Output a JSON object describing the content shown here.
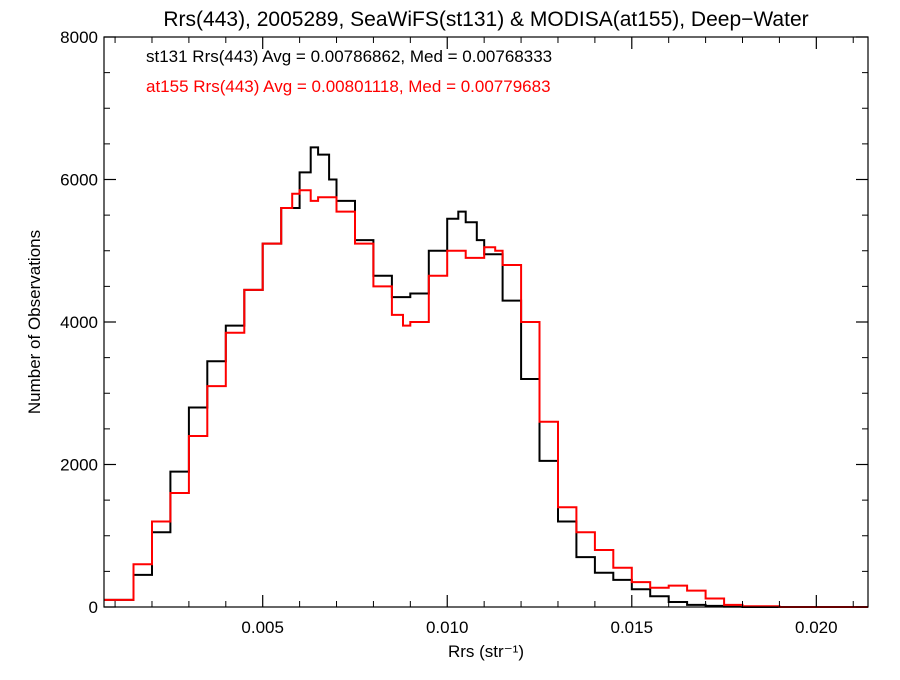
{
  "chart_data": {
    "type": "line",
    "title": "Rrs(443), 2005289, SeaWiFS(st131) & MODISA(at155), Deep−Water",
    "xlabel": "Rrs (str⁻¹)",
    "ylabel": "Number of Observations",
    "xlim": [
      0.0007,
      0.0214
    ],
    "ylim": [
      0,
      8000
    ],
    "x_ticks": [
      0.005,
      0.01,
      0.015,
      0.02
    ],
    "x_tick_labels": [
      "0.005",
      "0.010",
      "0.015",
      "0.020"
    ],
    "y_ticks": [
      0,
      2000,
      4000,
      6000,
      8000
    ],
    "y_tick_labels": [
      "0",
      "2000",
      "4000",
      "6000",
      "8000"
    ],
    "grid": false,
    "step": true,
    "annotations": [
      {
        "text": "st131 Rrs(443) Avg = 0.00786862, Med = 0.00768333",
        "color": "#000000"
      },
      {
        "text": "at155 Rrs(443) Avg = 0.00801118, Med = 0.00779683",
        "color": "#ff0000"
      }
    ],
    "series": [
      {
        "color": "#000000",
        "x": [
          0.0007,
          0.0015,
          0.002,
          0.0025,
          0.003,
          0.0035,
          0.004,
          0.0045,
          0.005,
          0.0055,
          0.006,
          0.0063,
          0.0065,
          0.0068,
          0.007,
          0.0075,
          0.008,
          0.0085,
          0.009,
          0.0095,
          0.01,
          0.0103,
          0.0105,
          0.0108,
          0.011,
          0.0115,
          0.012,
          0.0125,
          0.013,
          0.0135,
          0.014,
          0.0145,
          0.015,
          0.0155,
          0.016,
          0.0165,
          0.017,
          0.0175,
          0.018,
          0.019,
          0.0214
        ],
        "y": [
          100,
          450,
          1050,
          1900,
          2800,
          3450,
          3950,
          4450,
          5100,
          5600,
          6100,
          6450,
          6350,
          6000,
          5700,
          5150,
          4650,
          4350,
          4400,
          5000,
          5450,
          5550,
          5400,
          5150,
          4950,
          4300,
          3200,
          2050,
          1200,
          700,
          480,
          380,
          250,
          150,
          70,
          30,
          15,
          5,
          0,
          0,
          0
        ]
      },
      {
        "color": "#ff0000",
        "x": [
          0.0007,
          0.0015,
          0.002,
          0.0025,
          0.003,
          0.0035,
          0.004,
          0.0045,
          0.005,
          0.0055,
          0.0058,
          0.006,
          0.0063,
          0.0065,
          0.007,
          0.0075,
          0.008,
          0.0085,
          0.0088,
          0.009,
          0.0095,
          0.01,
          0.0105,
          0.011,
          0.0113,
          0.0115,
          0.012,
          0.0125,
          0.013,
          0.0135,
          0.014,
          0.0145,
          0.015,
          0.0155,
          0.016,
          0.0165,
          0.017,
          0.0175,
          0.018,
          0.019,
          0.0214
        ],
        "y": [
          100,
          600,
          1200,
          1600,
          2400,
          3100,
          3850,
          4450,
          5100,
          5600,
          5800,
          5850,
          5700,
          5750,
          5550,
          5100,
          4500,
          4100,
          3950,
          4000,
          4650,
          5000,
          4900,
          5050,
          5000,
          4800,
          4000,
          2600,
          1400,
          1050,
          800,
          550,
          350,
          270,
          300,
          230,
          120,
          30,
          10,
          0,
          0
        ]
      }
    ]
  }
}
